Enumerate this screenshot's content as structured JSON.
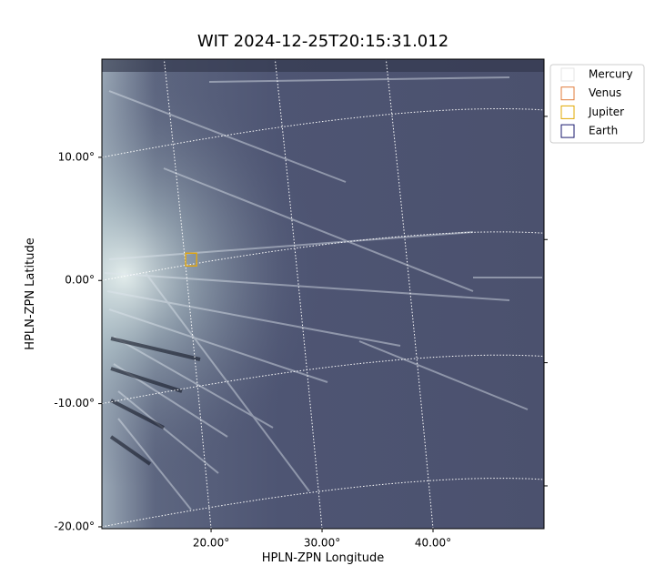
{
  "chart_data": {
    "type": "image",
    "title": "WIT 2024-12-25T20:15:31.012",
    "x_label": "HPLN-ZPN Longitude",
    "y_label": "HPLN-ZPN Latitude",
    "xlim": [
      10.16,
      50.0
    ],
    "ylim": [
      -20.15,
      17.97
    ],
    "xticks": [
      {
        "value": 20,
        "label": "20.00°"
      },
      {
        "value": 30,
        "label": "30.00°"
      },
      {
        "value": 40,
        "label": "40.00°"
      }
    ],
    "yticks": [
      {
        "value": 10,
        "label": "10.00°"
      },
      {
        "value": 0,
        "label": "0.00°"
      },
      {
        "value": -10,
        "label": "-10.00°"
      },
      {
        "value": -20,
        "label": "-20.00°"
      }
    ],
    "grid": true,
    "series": [
      {
        "name": "Mercury",
        "color": "#e6e6e6",
        "x": [
          18.2
        ],
        "y": [
          1.7
        ]
      },
      {
        "name": "Venus",
        "color": "#e07b39",
        "x": [
          18.2
        ],
        "y": [
          1.7
        ]
      },
      {
        "name": "Jupiter",
        "color": "#e0a800",
        "x": [
          18.2
        ],
        "y": [
          1.7
        ]
      },
      {
        "name": "Earth",
        "color": "#1a1a6e",
        "x": [
          null
        ],
        "y": [
          null
        ]
      }
    ]
  }
}
